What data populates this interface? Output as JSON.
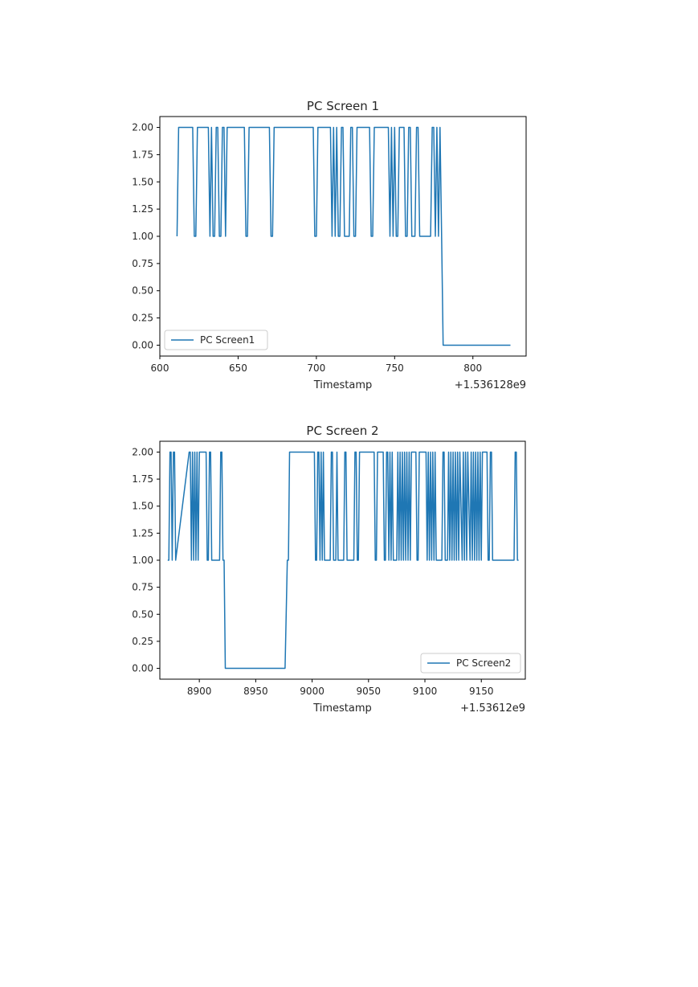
{
  "chart_data": [
    {
      "type": "line",
      "title": "PC Screen 1",
      "xlabel": "Timestamp",
      "ylabel": "",
      "x_offset_label": "+1.536128e9",
      "xlim": [
        600,
        834
      ],
      "ylim": [
        -0.1,
        2.1
      ],
      "xticks": [
        600,
        650,
        700,
        750,
        800
      ],
      "yticks": [
        0.0,
        0.25,
        0.5,
        0.75,
        1.0,
        1.25,
        1.5,
        1.75,
        2.0
      ],
      "ytick_labels": [
        "0.00",
        "0.25",
        "0.50",
        "0.75",
        "1.00",
        "1.25",
        "1.50",
        "1.75",
        "2.00"
      ],
      "legend_position": "lower-left",
      "color": "#1f77b4",
      "series": [
        {
          "name": "PC Screen1",
          "x": [
            611,
            612,
            621,
            622,
            623,
            624,
            631,
            632,
            633,
            634,
            635,
            636,
            637,
            638,
            639,
            640,
            641,
            642,
            643,
            654,
            655,
            656,
            657,
            670,
            671,
            672,
            673,
            698,
            699,
            700,
            701,
            709,
            710,
            711,
            712,
            713,
            714,
            715,
            716,
            717,
            718,
            721,
            722,
            723,
            724,
            725,
            726,
            734,
            735,
            736,
            737,
            746,
            747,
            748,
            749,
            750,
            751,
            752,
            753,
            756,
            757,
            758,
            759,
            760,
            761,
            763,
            764,
            765,
            766,
            773,
            774,
            775,
            776,
            777,
            778,
            779,
            780,
            781,
            824
          ],
          "y": [
            1,
            2,
            2,
            1,
            1,
            2,
            2,
            1,
            2,
            1,
            1,
            2,
            2,
            1,
            1,
            2,
            2,
            1,
            2,
            2,
            1,
            1,
            2,
            2,
            1,
            1,
            2,
            2,
            1,
            1,
            2,
            2,
            1,
            2,
            1,
            2,
            1,
            1,
            2,
            2,
            1,
            1,
            2,
            2,
            1,
            1,
            2,
            2,
            1,
            1,
            2,
            2,
            1,
            2,
            1,
            2,
            1,
            1,
            2,
            2,
            1,
            1,
            2,
            2,
            1,
            1,
            2,
            2,
            1,
            1,
            2,
            2,
            1,
            2,
            1,
            2,
            1,
            0,
            0
          ]
        }
      ]
    },
    {
      "type": "line",
      "title": "PC Screen 2",
      "xlabel": "Timestamp",
      "ylabel": "",
      "x_offset_label": "+1.53612e9",
      "xlim": [
        8865,
        9189
      ],
      "ylim": [
        -0.1,
        2.1
      ],
      "xticks": [
        8900,
        8950,
        9000,
        9050,
        9100,
        9150
      ],
      "yticks": [
        0.0,
        0.25,
        0.5,
        0.75,
        1.0,
        1.25,
        1.5,
        1.75,
        2.0
      ],
      "ytick_labels": [
        "0.00",
        "0.25",
        "0.50",
        "0.75",
        "1.00",
        "1.25",
        "1.50",
        "1.75",
        "2.00"
      ],
      "legend_position": "lower-right",
      "color": "#1f77b4",
      "series": [
        {
          "name": "PC Screen2",
          "x": [
            8872,
            8873,
            8874,
            8875,
            8876,
            8877,
            8878,
            8879,
            8891,
            8892,
            8893,
            8894,
            8895,
            8896,
            8897,
            8898,
            8899,
            8900,
            8901,
            8906,
            8907,
            8908,
            8909,
            8910,
            8911,
            8918,
            8919,
            8920,
            8921,
            8922,
            8923,
            8924,
            8976,
            8978,
            8979,
            8980,
            8981,
            8982,
            9002,
            9003,
            9004,
            9005,
            9006,
            9007,
            9008,
            9009,
            9010,
            9011,
            9016,
            9017,
            9018,
            9019,
            9021,
            9022,
            9023,
            9028,
            9029,
            9030,
            9031,
            9037,
            9038,
            9039,
            9040,
            9041,
            9042,
            9043,
            9055,
            9056,
            9057,
            9058,
            9063,
            9064,
            9065,
            9066,
            9067,
            9068,
            9069,
            9070,
            9071,
            9072,
            9075,
            9076,
            9077,
            9078,
            9079,
            9080,
            9081,
            9082,
            9083,
            9084,
            9085,
            9086,
            9087,
            9088,
            9092,
            9093,
            9094,
            9095,
            9101,
            9102,
            9103,
            9104,
            9105,
            9106,
            9107,
            9108,
            9109,
            9110,
            9115,
            9116,
            9117,
            9118,
            9120,
            9121,
            9122,
            9123,
            9124,
            9125,
            9126,
            9127,
            9128,
            9129,
            9130,
            9131,
            9133,
            9134,
            9135,
            9136,
            9137,
            9138,
            9140,
            9141,
            9142,
            9143,
            9144,
            9145,
            9146,
            9147,
            9148,
            9149,
            9150,
            9151,
            9155,
            9156,
            9157,
            9158,
            9159,
            9160,
            9179,
            9180,
            9181,
            9182,
            9183
          ],
          "y": [
            1,
            1,
            2,
            2,
            1,
            2,
            2,
            1,
            2,
            2,
            1,
            2,
            1,
            2,
            1,
            2,
            1,
            2,
            2,
            2,
            1,
            1,
            2,
            2,
            1,
            1,
            2,
            2,
            1,
            1,
            0,
            0,
            0,
            1,
            1,
            2,
            2,
            2,
            2,
            1,
            1,
            2,
            2,
            1,
            2,
            1,
            2,
            1,
            1,
            2,
            2,
            1,
            1,
            2,
            1,
            1,
            2,
            2,
            1,
            1,
            2,
            2,
            1,
            1,
            2,
            2,
            2,
            1,
            1,
            2,
            2,
            1,
            1,
            2,
            2,
            1,
            2,
            1,
            2,
            1,
            1,
            2,
            1,
            2,
            1,
            2,
            1,
            2,
            1,
            2,
            1,
            2,
            1,
            2,
            2,
            1,
            1,
            2,
            2,
            1,
            2,
            1,
            2,
            1,
            2,
            1,
            2,
            1,
            1,
            2,
            2,
            1,
            1,
            2,
            1,
            2,
            1,
            2,
            1,
            2,
            1,
            2,
            1,
            2,
            1,
            2,
            1,
            2,
            1,
            2,
            1,
            2,
            1,
            2,
            1,
            2,
            1,
            2,
            1,
            2,
            1,
            2,
            2,
            1,
            1,
            2,
            2,
            1,
            1,
            2,
            2,
            1,
            1
          ]
        }
      ]
    }
  ]
}
